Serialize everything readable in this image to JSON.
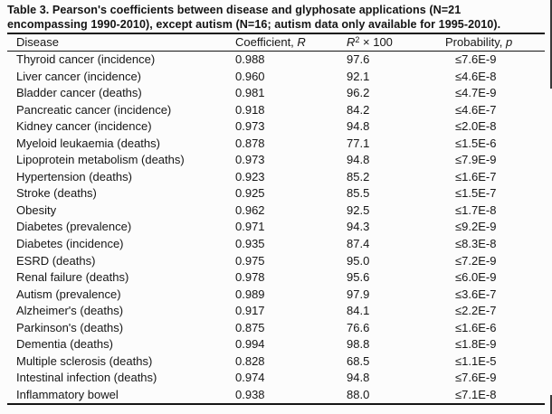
{
  "title": {
    "line1": "Table 3. Pearson's coefficients between disease and glyphosate applications (N=21",
    "line2": "encompassing 1990-2010), except autism (N=16; autism data only available for 1995-2010)."
  },
  "table": {
    "columns": {
      "disease": "Disease",
      "coefficient_prefix": "Coefficient, ",
      "coefficient_symbol": "R",
      "r2_base": "R",
      "r2_exponent": "2",
      "r2_suffix": " × 100",
      "probability_prefix": "Probability, ",
      "probability_symbol": "p"
    },
    "rows": [
      {
        "disease": "Thyroid cancer (incidence)",
        "r": "0.988",
        "r2": "97.6",
        "p": "≤7.6E-9"
      },
      {
        "disease": "Liver cancer (incidence)",
        "r": "0.960",
        "r2": "92.1",
        "p": "≤4.6E-8"
      },
      {
        "disease": "Bladder cancer (deaths)",
        "r": "0.981",
        "r2": "96.2",
        "p": "≤4.7E-9"
      },
      {
        "disease": "Pancreatic cancer (incidence)",
        "r": "0.918",
        "r2": "84.2",
        "p": "≤4.6E-7"
      },
      {
        "disease": "Kidney cancer (incidence)",
        "r": "0.973",
        "r2": "94.8",
        "p": "≤2.0E-8"
      },
      {
        "disease": "Myeloid leukaemia (deaths)",
        "r": "0.878",
        "r2": "77.1",
        "p": "≤1.5E-6"
      },
      {
        "disease": "Lipoprotein metabolism (deaths)",
        "r": "0.973",
        "r2": "94.8",
        "p": "≤7.9E-9"
      },
      {
        "disease": "Hypertension (deaths)",
        "r": "0.923",
        "r2": "85.2",
        "p": "≤1.6E-7"
      },
      {
        "disease": "Stroke (deaths)",
        "r": "0.925",
        "r2": "85.5",
        "p": "≤1.5E-7"
      },
      {
        "disease": "Obesity",
        "r": "0.962",
        "r2": "92.5",
        "p": "≤1.7E-8"
      },
      {
        "disease": "Diabetes (prevalence)",
        "r": "0.971",
        "r2": "94.3",
        "p": "≤9.2E-9"
      },
      {
        "disease": "Diabetes (incidence)",
        "r": "0.935",
        "r2": "87.4",
        "p": "≤8.3E-8"
      },
      {
        "disease": "ESRD (deaths)",
        "r": "0.975",
        "r2": "95.0",
        "p": "≤7.2E-9"
      },
      {
        "disease": "Renal failure (deaths)",
        "r": "0.978",
        "r2": "95.6",
        "p": "≤6.0E-9"
      },
      {
        "disease": "Autism (prevalence)",
        "r": "0.989",
        "r2": "97.9",
        "p": "≤3.6E-7"
      },
      {
        "disease": "Alzheimer's (deaths)",
        "r": "0.917",
        "r2": "84.1",
        "p": "≤2.2E-7"
      },
      {
        "disease": "Parkinson's (deaths)",
        "r": "0.875",
        "r2": "76.6",
        "p": "≤1.6E-6"
      },
      {
        "disease": "Dementia (deaths)",
        "r": "0.994",
        "r2": "98.8",
        "p": "≤1.8E-9"
      },
      {
        "disease": "Multiple sclerosis (deaths)",
        "r": "0.828",
        "r2": "68.5",
        "p": "≤1.1E-5"
      },
      {
        "disease": "Intestinal infection (deaths)",
        "r": "0.974",
        "r2": "94.8",
        "p": "≤7.6E-9"
      },
      {
        "disease": "Inflammatory bowel",
        "r": "0.938",
        "r2": "88.0",
        "p": "≤7.1E-8"
      }
    ]
  },
  "colors": {
    "background": "#fcfcfc",
    "text": "#161616",
    "rule": "#151515"
  }
}
